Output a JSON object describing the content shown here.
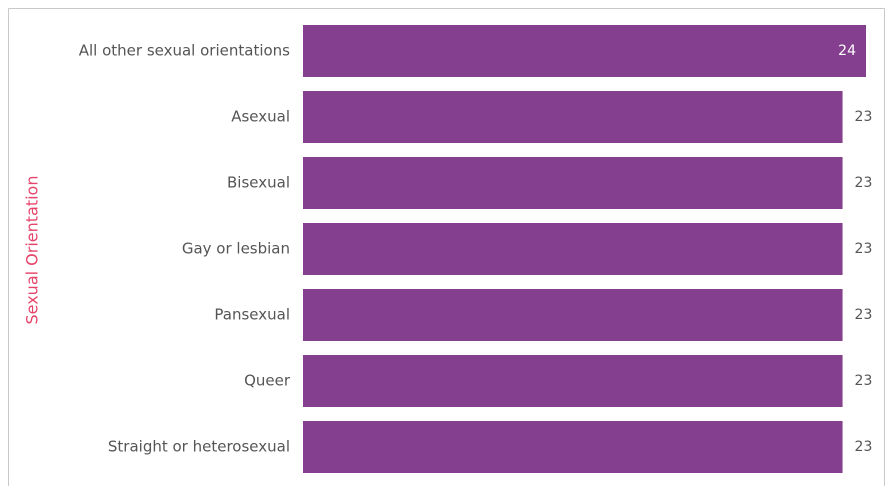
{
  "chart_data": {
    "type": "bar",
    "orientation": "horizontal",
    "y_label": "Sexual Orientation",
    "categories": [
      "All other sexual orientations",
      "Asexual",
      "Bisexual",
      "Gay or lesbian",
      "Pansexual",
      "Queer",
      "Straight or heterosexual"
    ],
    "values": [
      24,
      23,
      23,
      23,
      23,
      23,
      23
    ],
    "color": "#853f8f"
  }
}
